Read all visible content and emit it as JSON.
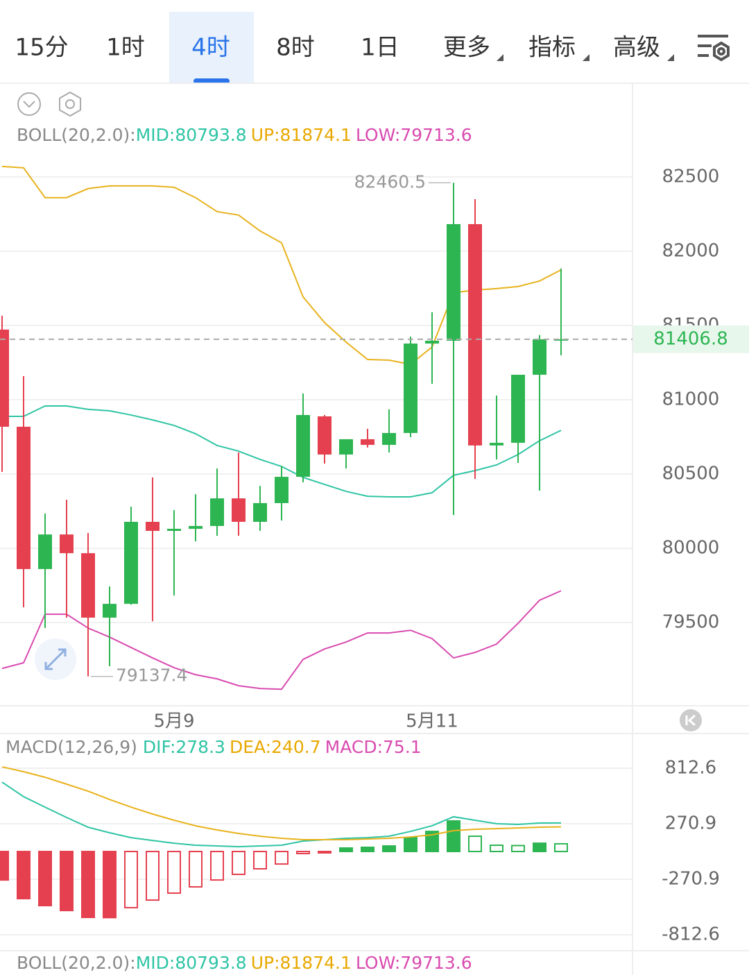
{
  "tabs": [
    "15分",
    "1时",
    "4时",
    "8时",
    "1日",
    "更多",
    "指标",
    "高级"
  ],
  "chart_data": [
    {
      "type": "candlestick",
      "categories": [
        null,
        null,
        null,
        null,
        null,
        null,
        null,
        null,
        "5月9",
        null,
        null,
        null,
        null,
        null,
        null,
        null,
        null,
        null,
        null,
        null,
        "5月11",
        null,
        null,
        null,
        null,
        null,
        null
      ],
      "candles": [
        {
          "open": 81472,
          "high": 81565,
          "low": 80514,
          "close": 80818
        },
        {
          "open": 80818,
          "high": 81159,
          "low": 79603,
          "close": 79860
        },
        {
          "open": 79860,
          "high": 80234,
          "low": 79463,
          "close": 80093
        },
        {
          "open": 80093,
          "high": 80327,
          "low": 79533,
          "close": 79967
        },
        {
          "open": 79967,
          "high": 80103,
          "low": 79137.4,
          "close": 79533
        },
        {
          "open": 79533,
          "high": 79743,
          "low": 79206,
          "close": 79626
        },
        {
          "open": 79626,
          "high": 80280,
          "low": 79620,
          "close": 80178
        },
        {
          "open": 80178,
          "high": 80477,
          "low": 79509,
          "close": 80117
        },
        {
          "open": 80117,
          "high": 80257,
          "low": 79682,
          "close": 80131
        },
        {
          "open": 80131,
          "high": 80364,
          "low": 80047,
          "close": 80150
        },
        {
          "open": 80150,
          "high": 80537,
          "low": 80084,
          "close": 80336
        },
        {
          "open": 80336,
          "high": 80645,
          "low": 80084,
          "close": 80178
        },
        {
          "open": 80178,
          "high": 80420,
          "low": 80117,
          "close": 80304
        },
        {
          "open": 80304,
          "high": 80551,
          "low": 80187,
          "close": 80481
        },
        {
          "open": 80481,
          "high": 81042,
          "low": 80444,
          "close": 80897
        },
        {
          "open": 80888,
          "high": 80897,
          "low": 80570,
          "close": 80631
        },
        {
          "open": 80631,
          "high": 80734,
          "low": 80537,
          "close": 80734
        },
        {
          "open": 80734,
          "high": 80804,
          "low": 80678,
          "close": 80696
        },
        {
          "open": 80696,
          "high": 80935,
          "low": 80645,
          "close": 80776
        },
        {
          "open": 80776,
          "high": 81425,
          "low": 80748,
          "close": 81378
        },
        {
          "open": 81378,
          "high": 81589,
          "low": 81107,
          "close": 81397
        },
        {
          "open": 81397,
          "high": 82460.5,
          "low": 80224,
          "close": 82182
        },
        {
          "open": 82182,
          "high": 82350,
          "low": 80467,
          "close": 80692
        },
        {
          "open": 80692,
          "high": 81028,
          "low": 80598,
          "close": 80710
        },
        {
          "open": 80710,
          "high": 81168,
          "low": 80575,
          "close": 81168
        },
        {
          "open": 81168,
          "high": 81435,
          "low": 80388,
          "close": 81407
        },
        {
          "open": 81400,
          "high": 81883,
          "low": 81299,
          "close": 81406.8
        }
      ],
      "lines": [
        {
          "color": "#e8b21c",
          "values": [
            82570,
            82561,
            82360,
            82360,
            82421,
            82439,
            82439,
            82439,
            82430,
            82360,
            82266,
            82243,
            82136,
            82056,
            81692,
            81519,
            81388,
            81271,
            81266,
            81238,
            81355,
            81720,
            81738,
            81748,
            81762,
            81799,
            81874.1
          ]
        },
        {
          "color": "#2ec4a4",
          "values": [
            80888,
            80888,
            80958,
            80958,
            80935,
            80925,
            80897,
            80864,
            80827,
            80771,
            80692,
            80654,
            80598,
            80551,
            80477,
            80430,
            80383,
            80350,
            80346,
            80346,
            80374,
            80491,
            80523,
            80561,
            80631,
            80724,
            80793.8
          ]
        },
        {
          "color": "#d94bb0",
          "values": [
            79191,
            79229,
            79556,
            79556,
            79463,
            79402,
            79332,
            79262,
            79196,
            79149,
            79121,
            79075,
            79056,
            79051,
            79252,
            79322,
            79369,
            79430,
            79430,
            79448,
            79392,
            79262,
            79299,
            79355,
            79495,
            79650,
            79713.6
          ]
        }
      ],
      "ylim": [
        78940,
        83130
      ],
      "yticks": [
        79500,
        80000,
        80500,
        81000,
        81500,
        82000,
        82500
      ],
      "legend": [
        "BOLL(20,2.0):",
        "MID:80793.8",
        "UP:81874.1",
        "LOW:79713.6"
      ],
      "colors": {
        "up": "#2db552",
        "down": "#e5404f"
      }
    },
    {
      "type": "macd",
      "values": [
        -278,
        -460,
        -528,
        -576,
        -643,
        -645,
        -548,
        -474,
        -406,
        -345,
        -278,
        -223,
        -169,
        -122,
        -20,
        -5,
        34,
        41,
        54,
        135,
        196,
        298,
        149,
        61,
        58,
        81,
        75.1
      ],
      "lines": [
        {
          "color": "#2ec4a4",
          "values": [
            677,
            535,
            433,
            332,
            237,
            183,
            135,
            108,
            81,
            61,
            54,
            47,
            54,
            61,
            102,
            115,
            129,
            135,
            149,
            196,
            251,
            339,
            305,
            271,
            264,
            278,
            278.3
          ]
        },
        {
          "color": "#e8b21c",
          "values": [
            826,
            779,
            724,
            657,
            589,
            508,
            433,
            366,
            305,
            251,
            210,
            176,
            149,
            129,
            115,
            115,
            115,
            122,
            129,
            142,
            163,
            203,
            217,
            223,
            230,
            237,
            240.7
          ]
        }
      ],
      "ylim": [
        -968,
        1131
      ],
      "yticks": [
        -812.6,
        -270.9,
        270.9,
        812.6
      ],
      "legend": [
        "MACD(12,26,9)",
        "DIF:278.3",
        "DEA:240.7",
        "MACD:75.1"
      ],
      "colors": {
        "up": "#2db552",
        "down": "#e5404f"
      }
    }
  ]
}
